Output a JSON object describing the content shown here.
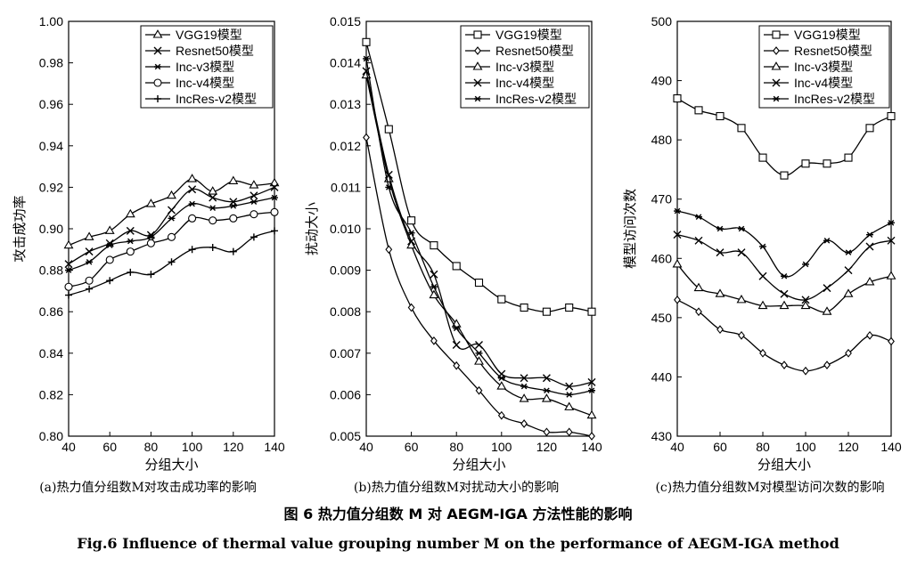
{
  "figure": {
    "title_cn": "图 6    热力值分组数 M 对 AEGM-IGA 方法性能的影响",
    "title_en": "Fig.6    Influence of thermal value grouping number M on the performance of AEGM-IGA method"
  },
  "chart_data": [
    {
      "type": "line",
      "caption": "(a)热力值分组数M对攻击成功率的影响",
      "xlabel": "分组大小",
      "ylabel": "攻击成功率",
      "xlim": [
        40,
        140
      ],
      "ylim": [
        0.8,
        1.0
      ],
      "xticks": [
        40,
        60,
        80,
        100,
        120,
        140
      ],
      "xtick_labels": [
        "40",
        "60",
        "80",
        "100",
        "120",
        "140"
      ],
      "yticks": [
        0.8,
        0.82,
        0.84,
        0.86,
        0.88,
        0.9,
        0.92,
        0.94,
        0.96,
        0.98,
        1.0
      ],
      "ytick_labels": [
        "0.80",
        "0.82",
        "0.84",
        "0.86",
        "0.88",
        "0.90",
        "0.92",
        "0.94",
        "0.96",
        "0.98",
        "1.00"
      ],
      "legend_position": "top-right",
      "x": [
        40,
        50,
        60,
        70,
        80,
        90,
        100,
        110,
        120,
        130,
        140
      ],
      "series": [
        {
          "name": "VGG19模型",
          "marker": "triangle",
          "values": [
            0.892,
            0.896,
            0.899,
            0.907,
            0.912,
            0.916,
            0.924,
            0.918,
            0.923,
            0.921,
            0.922
          ]
        },
        {
          "name": "Resnet50模型",
          "marker": "x",
          "values": [
            0.883,
            0.889,
            0.893,
            0.899,
            0.897,
            0.909,
            0.919,
            0.915,
            0.913,
            0.916,
            0.92
          ]
        },
        {
          "name": "Inc-v3模型",
          "marker": "asterisk",
          "values": [
            0.88,
            0.884,
            0.892,
            0.894,
            0.896,
            0.905,
            0.912,
            0.91,
            0.911,
            0.913,
            0.915
          ]
        },
        {
          "name": "Inc-v4模型",
          "marker": "circle",
          "values": [
            0.872,
            0.875,
            0.885,
            0.889,
            0.893,
            0.896,
            0.905,
            0.904,
            0.905,
            0.907,
            0.908
          ]
        },
        {
          "name": "IncRes-v2模型",
          "marker": "plus",
          "values": [
            0.868,
            0.871,
            0.875,
            0.879,
            0.878,
            0.884,
            0.89,
            0.891,
            0.889,
            0.896,
            0.899
          ]
        }
      ]
    },
    {
      "type": "line",
      "caption": "(b)热力值分组数M对扰动大小的影响",
      "xlabel": "分组大小",
      "ylabel": "扰动大小",
      "xlim": [
        40,
        140
      ],
      "ylim": [
        0.005,
        0.015
      ],
      "xticks": [
        40,
        60,
        80,
        100,
        120,
        140
      ],
      "xtick_labels": [
        "40",
        "60",
        "80",
        "100",
        "120",
        "140"
      ],
      "yticks": [
        0.005,
        0.006,
        0.007,
        0.008,
        0.009,
        0.01,
        0.011,
        0.012,
        0.013,
        0.014,
        0.015
      ],
      "ytick_labels": [
        "0.005",
        "0.006",
        "0.007",
        "0.008",
        "0.009",
        "0.010",
        "0.011",
        "0.012",
        "0.013",
        "0.014",
        "0.015"
      ],
      "legend_position": "top-right",
      "x": [
        40,
        50,
        60,
        70,
        80,
        90,
        100,
        110,
        120,
        130,
        140
      ],
      "series": [
        {
          "name": "VGG19模型",
          "marker": "square",
          "values": [
            0.0145,
            0.0124,
            0.0102,
            0.0096,
            0.0091,
            0.0087,
            0.0083,
            0.0081,
            0.008,
            0.0081,
            0.008
          ]
        },
        {
          "name": "Resnet50模型",
          "marker": "diamond",
          "values": [
            0.0122,
            0.0095,
            0.0081,
            0.0073,
            0.0067,
            0.0061,
            0.0055,
            0.0053,
            0.0051,
            0.0051,
            0.005
          ]
        },
        {
          "name": "Inc-v3模型",
          "marker": "triangle",
          "values": [
            0.0137,
            0.0112,
            0.0096,
            0.0084,
            0.0077,
            0.0068,
            0.0062,
            0.0059,
            0.0059,
            0.0057,
            0.0055
          ]
        },
        {
          "name": "Inc-v4模型",
          "marker": "x",
          "values": [
            0.0138,
            0.0113,
            0.0097,
            0.0089,
            0.0072,
            0.0072,
            0.0065,
            0.0064,
            0.0064,
            0.0062,
            0.0063
          ]
        },
        {
          "name": "IncRes-v2模型",
          "marker": "asterisk",
          "values": [
            0.0141,
            0.011,
            0.0099,
            0.0086,
            0.0076,
            0.007,
            0.0064,
            0.0062,
            0.0061,
            0.006,
            0.0061
          ]
        }
      ]
    },
    {
      "type": "line",
      "caption": "(c)热力值分组数M对模型访问次数的影响",
      "xlabel": "分组大小",
      "ylabel": "模型访问次数",
      "xlim": [
        40,
        140
      ],
      "ylim": [
        430,
        500
      ],
      "xticks": [
        40,
        60,
        80,
        100,
        120,
        140
      ],
      "xtick_labels": [
        "40",
        "60",
        "80",
        "100",
        "120",
        "140"
      ],
      "yticks": [
        430,
        440,
        450,
        460,
        470,
        480,
        490,
        500
      ],
      "ytick_labels": [
        "430",
        "440",
        "450",
        "460",
        "470",
        "480",
        "490",
        "500"
      ],
      "legend_position": "top-right",
      "x": [
        40,
        50,
        60,
        70,
        80,
        90,
        100,
        110,
        120,
        130,
        140
      ],
      "series": [
        {
          "name": "VGG19模型",
          "marker": "square",
          "values": [
            487,
            485,
            484,
            482,
            477,
            474,
            476,
            476,
            477,
            482,
            484
          ]
        },
        {
          "name": "Resnet50模型",
          "marker": "diamond",
          "values": [
            453,
            451,
            448,
            447,
            444,
            442,
            441,
            442,
            444,
            447,
            446
          ]
        },
        {
          "name": "Inc-v3模型",
          "marker": "triangle",
          "values": [
            459,
            455,
            454,
            453,
            452,
            452,
            452,
            451,
            454,
            456,
            457
          ]
        },
        {
          "name": "Inc-v4模型",
          "marker": "x",
          "values": [
            464,
            463,
            461,
            461,
            457,
            454,
            453,
            455,
            458,
            462,
            463
          ]
        },
        {
          "name": "IncRes-v2模型",
          "marker": "asterisk",
          "values": [
            468,
            467,
            465,
            465,
            462,
            457,
            459,
            463,
            461,
            464,
            466
          ]
        }
      ]
    }
  ]
}
